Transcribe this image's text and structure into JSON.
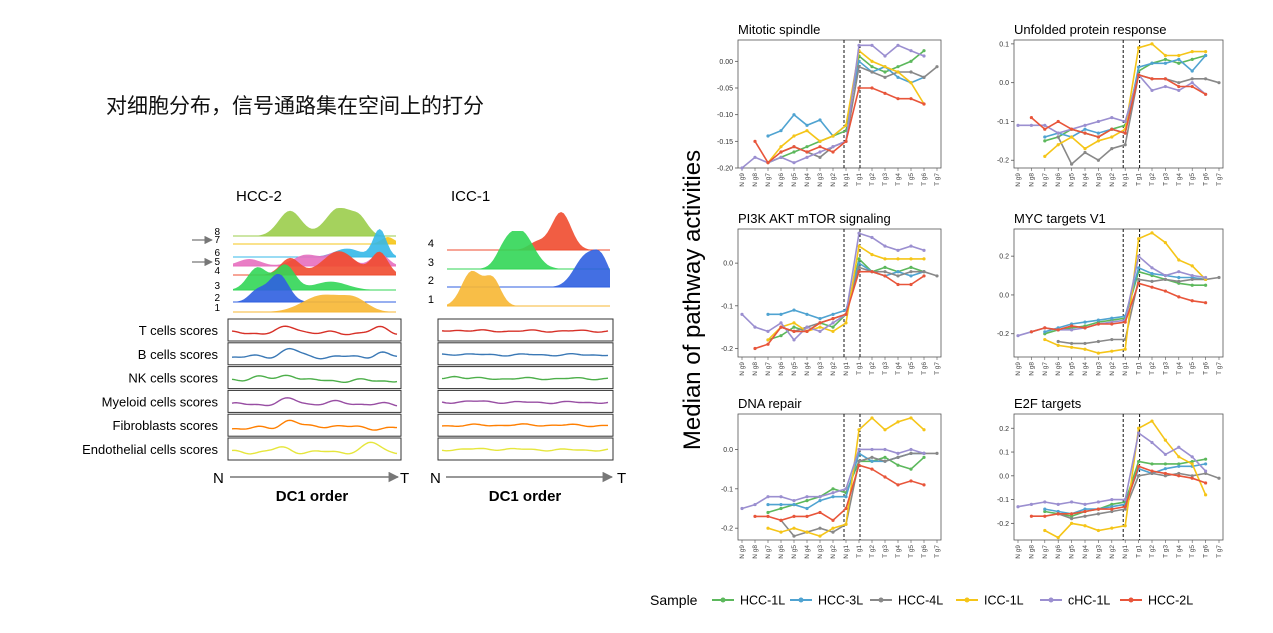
{
  "slide_title": "对细胞分布，信号通路集在空间上的打分",
  "left_figure": {
    "panels": [
      {
        "title": "HCC-2",
        "cluster_labels": [
          "8",
          "7",
          "6",
          "5",
          "4",
          "3",
          "2",
          "1"
        ],
        "arrowed_clusters": [
          "7",
          "5"
        ]
      },
      {
        "title": "ICC-1",
        "cluster_labels": [
          "4",
          "3",
          "2",
          "1"
        ],
        "arrowed_clusters": []
      }
    ],
    "score_rows": [
      "T cells scores",
      "B cells scores",
      "NK cells scores",
      "Myeloid cells scores",
      "Fibroblasts scores",
      "Endothelial cells scores"
    ],
    "score_colors": [
      "#d73027",
      "#3a78b5",
      "#4daf4a",
      "#984ea3",
      "#ff7f00",
      "#e6e63c"
    ],
    "axis_start": "N",
    "axis_end": "T",
    "axis_label": "DC1 order"
  },
  "ylabel": "Median of pathway activities",
  "legend": {
    "title": "Sample",
    "entries": [
      {
        "name": "HCC-1L",
        "color": "#5cb85c"
      },
      {
        "name": "HCC-3L",
        "color": "#4fa3d1"
      },
      {
        "name": "HCC-4L",
        "color": "#888888"
      },
      {
        "name": "ICC-1L",
        "color": "#f5c518"
      },
      {
        "name": "cHC-1L",
        "color": "#9b8fd0"
      },
      {
        "name": "HCC-2L",
        "color": "#e8553a"
      }
    ]
  },
  "chart_data": [
    {
      "type": "line",
      "title": "Mitotic spindle",
      "ylim": [
        -0.2,
        0.04
      ],
      "yticks": [
        "0.00",
        "-0.05",
        "-0.10",
        "-0.15",
        "-0.20"
      ],
      "ytick_values": [
        0,
        -0.05,
        -0.1,
        -0.15,
        -0.2
      ],
      "categories": [
        "N g9",
        "N g8",
        "N g7",
        "N g6",
        "N g5",
        "N g4",
        "N g3",
        "N g2",
        "N g1",
        "T g1",
        "T g2",
        "T g3",
        "T g4",
        "T g5",
        "T g6",
        "T g7"
      ],
      "series": [
        {
          "name": "HCC-1L",
          "values": [
            null,
            null,
            -0.19,
            -0.18,
            -0.17,
            -0.16,
            -0.15,
            -0.14,
            -0.13,
            0.01,
            -0.01,
            -0.02,
            -0.01,
            0.0,
            0.02,
            null
          ]
        },
        {
          "name": "HCC-3L",
          "values": [
            null,
            null,
            -0.14,
            -0.13,
            -0.1,
            -0.12,
            -0.11,
            -0.14,
            -0.12,
            0.0,
            -0.02,
            -0.01,
            -0.03,
            -0.04,
            -0.03,
            null
          ]
        },
        {
          "name": "HCC-4L",
          "values": [
            null,
            null,
            null,
            -0.17,
            -0.16,
            -0.17,
            -0.18,
            -0.16,
            -0.15,
            -0.01,
            -0.02,
            -0.03,
            -0.02,
            -0.02,
            -0.03,
            -0.01
          ]
        },
        {
          "name": "ICC-1L",
          "values": [
            null,
            null,
            -0.19,
            -0.16,
            -0.14,
            -0.13,
            -0.15,
            -0.14,
            -0.12,
            0.02,
            0.0,
            -0.01,
            -0.02,
            -0.04,
            -0.08,
            null
          ]
        },
        {
          "name": "cHC-1L",
          "values": [
            -0.2,
            -0.18,
            -0.19,
            -0.18,
            -0.19,
            -0.18,
            -0.17,
            -0.16,
            -0.15,
            0.03,
            0.03,
            0.01,
            0.03,
            0.02,
            0.01,
            null
          ]
        },
        {
          "name": "HCC-2L",
          "values": [
            null,
            -0.15,
            -0.19,
            -0.17,
            -0.16,
            -0.17,
            -0.16,
            -0.17,
            -0.15,
            -0.05,
            -0.05,
            -0.06,
            -0.07,
            -0.07,
            -0.08,
            null
          ]
        }
      ]
    },
    {
      "type": "line",
      "title": "Unfolded protein response",
      "ylim": [
        -0.22,
        0.11
      ],
      "yticks": [
        "0.1",
        "0.0",
        "-0.1",
        "-0.2"
      ],
      "ytick_values": [
        0.1,
        0,
        -0.1,
        -0.2
      ],
      "categories": [
        "N g9",
        "N g8",
        "N g7",
        "N g6",
        "N g5",
        "N g4",
        "N g3",
        "N g2",
        "N g1",
        "T g1",
        "T g2",
        "T g3",
        "T g4",
        "T g5",
        "T g6",
        "T g7"
      ],
      "series": [
        {
          "name": "HCC-1L",
          "values": [
            null,
            null,
            -0.15,
            -0.14,
            -0.12,
            -0.13,
            -0.14,
            -0.12,
            -0.11,
            0.03,
            0.05,
            0.06,
            0.05,
            0.06,
            0.07,
            null
          ]
        },
        {
          "name": "HCC-3L",
          "values": [
            null,
            null,
            -0.14,
            -0.13,
            -0.14,
            -0.12,
            -0.13,
            -0.12,
            -0.13,
            0.04,
            0.05,
            0.05,
            0.06,
            0.03,
            0.07,
            null
          ]
        },
        {
          "name": "HCC-4L",
          "values": [
            null,
            null,
            null,
            -0.14,
            -0.21,
            -0.18,
            -0.2,
            -0.17,
            -0.16,
            0.02,
            0.01,
            0.01,
            0.0,
            0.01,
            0.01,
            0.0
          ]
        },
        {
          "name": "ICC-1L",
          "values": [
            null,
            null,
            -0.19,
            -0.16,
            -0.14,
            -0.17,
            -0.15,
            -0.14,
            -0.12,
            0.09,
            0.1,
            0.07,
            0.07,
            0.08,
            0.08,
            null
          ]
        },
        {
          "name": "cHC-1L",
          "values": [
            -0.11,
            -0.11,
            -0.11,
            -0.13,
            -0.12,
            -0.11,
            -0.1,
            -0.09,
            -0.1,
            0.02,
            -0.02,
            -0.01,
            -0.02,
            0.0,
            -0.03,
            null
          ]
        },
        {
          "name": "HCC-2L",
          "values": [
            null,
            -0.09,
            -0.12,
            -0.1,
            -0.12,
            -0.13,
            -0.14,
            -0.12,
            -0.13,
            0.02,
            0.01,
            0.01,
            -0.01,
            -0.01,
            -0.03,
            null
          ]
        }
      ]
    },
    {
      "type": "line",
      "title": "PI3K AKT mTOR signaling",
      "ylim": [
        -0.22,
        0.08
      ],
      "yticks": [
        "0.0",
        "-0.1",
        "-0.2"
      ],
      "ytick_values": [
        0,
        -0.1,
        -0.2
      ],
      "categories": [
        "N g9",
        "N g8",
        "N g7",
        "N g6",
        "N g5",
        "N g4",
        "N g3",
        "N g2",
        "N g1",
        "T g1",
        "T g2",
        "T g3",
        "T g4",
        "T g5",
        "T g6",
        "T g7"
      ],
      "series": [
        {
          "name": "HCC-1L",
          "values": [
            null,
            null,
            -0.18,
            -0.17,
            -0.15,
            -0.16,
            -0.14,
            -0.15,
            -0.12,
            0.01,
            -0.02,
            -0.01,
            -0.02,
            -0.01,
            -0.02,
            null
          ]
        },
        {
          "name": "HCC-3L",
          "values": [
            null,
            null,
            -0.12,
            -0.12,
            -0.11,
            -0.12,
            -0.13,
            -0.12,
            -0.11,
            0.0,
            -0.02,
            -0.03,
            -0.02,
            -0.03,
            -0.02,
            null
          ]
        },
        {
          "name": "HCC-4L",
          "values": [
            null,
            null,
            null,
            -0.15,
            -0.16,
            -0.15,
            -0.14,
            -0.13,
            -0.12,
            -0.01,
            -0.02,
            -0.02,
            -0.03,
            -0.02,
            -0.02,
            -0.03
          ]
        },
        {
          "name": "ICC-1L",
          "values": [
            null,
            null,
            -0.18,
            -0.15,
            -0.14,
            -0.16,
            -0.15,
            -0.16,
            -0.14,
            0.04,
            0.02,
            0.01,
            0.01,
            0.01,
            0.01,
            null
          ]
        },
        {
          "name": "cHC-1L",
          "values": [
            -0.12,
            -0.15,
            -0.16,
            -0.14,
            -0.18,
            -0.15,
            -0.16,
            -0.14,
            -0.12,
            0.07,
            0.06,
            0.04,
            0.03,
            0.04,
            0.03,
            null
          ]
        },
        {
          "name": "HCC-2L",
          "values": [
            null,
            -0.2,
            -0.19,
            -0.15,
            -0.16,
            -0.16,
            -0.14,
            -0.13,
            -0.12,
            -0.02,
            -0.02,
            -0.03,
            -0.05,
            -0.05,
            -0.03,
            null
          ]
        }
      ]
    },
    {
      "type": "line",
      "title": "MYC targets V1",
      "ylim": [
        -0.32,
        0.34
      ],
      "yticks": [
        "0.2",
        "0.0",
        "-0.2"
      ],
      "ytick_values": [
        0.2,
        0,
        -0.2
      ],
      "categories": [
        "N g9",
        "N g8",
        "N g7",
        "N g6",
        "N g5",
        "N g4",
        "N g3",
        "N g2",
        "N g1",
        "T g1",
        "T g2",
        "T g3",
        "T g4",
        "T g5",
        "T g6",
        "T g7"
      ],
      "series": [
        {
          "name": "HCC-1L",
          "values": [
            null,
            null,
            -0.2,
            -0.18,
            -0.17,
            -0.16,
            -0.14,
            -0.13,
            -0.12,
            0.12,
            0.1,
            0.08,
            0.06,
            0.05,
            0.05,
            null
          ]
        },
        {
          "name": "HCC-3L",
          "values": [
            null,
            null,
            -0.19,
            -0.17,
            -0.15,
            -0.14,
            -0.13,
            -0.12,
            -0.11,
            0.14,
            0.11,
            0.1,
            0.09,
            0.09,
            0.08,
            null
          ]
        },
        {
          "name": "HCC-4L",
          "values": [
            null,
            null,
            null,
            -0.24,
            -0.25,
            -0.25,
            -0.24,
            -0.23,
            -0.23,
            0.08,
            0.07,
            0.08,
            0.07,
            0.08,
            0.08,
            0.09
          ]
        },
        {
          "name": "ICC-1L",
          "values": [
            null,
            null,
            -0.23,
            -0.26,
            -0.27,
            -0.28,
            -0.3,
            -0.29,
            -0.28,
            0.29,
            0.32,
            0.27,
            0.18,
            0.15,
            0.08,
            null
          ]
        },
        {
          "name": "cHC-1L",
          "values": [
            -0.21,
            -0.19,
            -0.17,
            -0.18,
            -0.18,
            -0.17,
            -0.15,
            -0.14,
            -0.13,
            0.2,
            0.14,
            0.1,
            0.12,
            0.1,
            0.09,
            null
          ]
        },
        {
          "name": "HCC-2L",
          "values": [
            null,
            -0.19,
            -0.17,
            -0.18,
            -0.16,
            -0.17,
            -0.15,
            -0.15,
            -0.14,
            0.06,
            0.04,
            0.02,
            -0.01,
            -0.03,
            -0.04,
            null
          ]
        }
      ]
    },
    {
      "type": "line",
      "title": "DNA repair",
      "ylim": [
        -0.23,
        0.09
      ],
      "yticks": [
        "0.0",
        "-0.1",
        "-0.2"
      ],
      "ytick_values": [
        0,
        -0.1,
        -0.2
      ],
      "categories": [
        "N g9",
        "N g8",
        "N g7",
        "N g6",
        "N g5",
        "N g4",
        "N g3",
        "N g2",
        "N g1",
        "T g1",
        "T g2",
        "T g3",
        "T g4",
        "T g5",
        "T g6",
        "T g7"
      ],
      "series": [
        {
          "name": "HCC-1L",
          "values": [
            null,
            null,
            -0.16,
            -0.15,
            -0.14,
            -0.13,
            -0.12,
            -0.1,
            -0.11,
            -0.03,
            -0.03,
            -0.02,
            -0.04,
            -0.05,
            -0.02,
            null
          ]
        },
        {
          "name": "HCC-3L",
          "values": [
            null,
            null,
            -0.14,
            -0.14,
            -0.14,
            -0.15,
            -0.13,
            -0.12,
            -0.12,
            -0.01,
            -0.03,
            -0.03,
            -0.02,
            -0.01,
            -0.01,
            null
          ]
        },
        {
          "name": "HCC-4L",
          "values": [
            null,
            null,
            null,
            -0.18,
            -0.22,
            -0.21,
            -0.2,
            -0.21,
            -0.19,
            -0.03,
            -0.02,
            -0.03,
            -0.02,
            -0.01,
            -0.01,
            -0.01
          ]
        },
        {
          "name": "ICC-1L",
          "values": [
            null,
            null,
            -0.2,
            -0.21,
            -0.2,
            -0.21,
            -0.22,
            -0.2,
            -0.19,
            0.05,
            0.08,
            0.05,
            0.07,
            0.08,
            0.05,
            null
          ]
        },
        {
          "name": "cHC-1L",
          "values": [
            -0.15,
            -0.14,
            -0.12,
            -0.12,
            -0.13,
            -0.12,
            -0.12,
            -0.11,
            -0.1,
            0.0,
            0.0,
            0.0,
            -0.01,
            0.0,
            -0.01,
            null
          ]
        },
        {
          "name": "HCC-2L",
          "values": [
            null,
            -0.17,
            -0.17,
            -0.18,
            -0.17,
            -0.17,
            -0.16,
            -0.18,
            -0.15,
            -0.04,
            -0.05,
            -0.07,
            -0.09,
            -0.08,
            -0.09,
            null
          ]
        }
      ]
    },
    {
      "type": "line",
      "title": "E2F targets",
      "ylim": [
        -0.27,
        0.26
      ],
      "yticks": [
        "0.2",
        "0.1",
        "0.0",
        "-0.1",
        "-0.2"
      ],
      "ytick_values": [
        0.2,
        0.1,
        0,
        -0.1,
        -0.2
      ],
      "categories": [
        "N g9",
        "N g8",
        "N g7",
        "N g6",
        "N g5",
        "N g4",
        "N g3",
        "N g2",
        "N g1",
        "T g1",
        "T g2",
        "T g3",
        "T g4",
        "T g5",
        "T g6",
        "T g7"
      ],
      "series": [
        {
          "name": "HCC-1L",
          "values": [
            null,
            null,
            -0.15,
            -0.16,
            -0.17,
            -0.15,
            -0.14,
            -0.12,
            -0.11,
            0.06,
            0.05,
            0.05,
            0.05,
            0.06,
            0.07,
            null
          ]
        },
        {
          "name": "HCC-3L",
          "values": [
            null,
            null,
            -0.14,
            -0.15,
            -0.16,
            -0.14,
            -0.14,
            -0.13,
            -0.12,
            0.03,
            0.01,
            0.03,
            0.04,
            0.04,
            0.05,
            null
          ]
        },
        {
          "name": "HCC-4L",
          "values": [
            null,
            null,
            null,
            -0.16,
            -0.18,
            -0.17,
            -0.16,
            -0.15,
            -0.14,
            0.0,
            0.01,
            0.0,
            0.01,
            0.0,
            0.01,
            -0.01
          ]
        },
        {
          "name": "ICC-1L",
          "values": [
            null,
            null,
            -0.23,
            -0.26,
            -0.2,
            -0.21,
            -0.23,
            -0.22,
            -0.21,
            0.2,
            0.23,
            0.15,
            0.08,
            0.05,
            -0.08,
            null
          ]
        },
        {
          "name": "cHC-1L",
          "values": [
            -0.13,
            -0.12,
            -0.11,
            -0.12,
            -0.11,
            -0.12,
            -0.11,
            -0.1,
            -0.1,
            0.18,
            0.14,
            0.09,
            0.12,
            0.08,
            0.02,
            null
          ]
        },
        {
          "name": "HCC-2L",
          "values": [
            null,
            -0.17,
            -0.17,
            -0.16,
            -0.16,
            -0.15,
            -0.14,
            -0.14,
            -0.13,
            0.04,
            0.02,
            0.01,
            0.0,
            -0.01,
            -0.03,
            null
          ]
        }
      ]
    }
  ]
}
